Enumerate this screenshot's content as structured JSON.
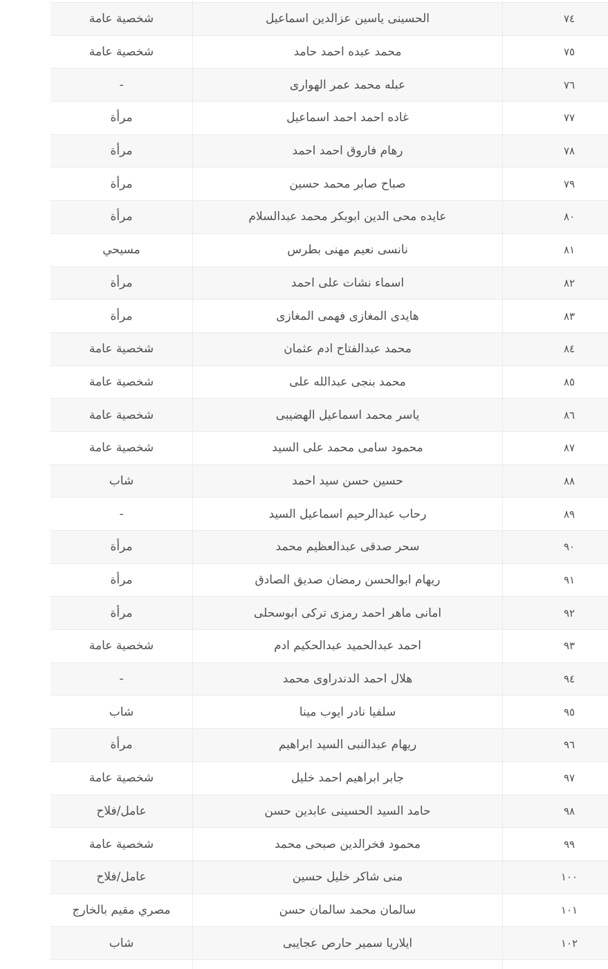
{
  "table": {
    "rows": [
      {
        "serial": "٧٤",
        "name": "الحسينى ياسين عزالدين اسماعيل",
        "category": "شخصية عامة"
      },
      {
        "serial": "٧٥",
        "name": "محمد عبده احمد حامد",
        "category": "شخصية عامة"
      },
      {
        "serial": "٧٦",
        "name": "عبله محمد عمر الهوارى",
        "category": "-"
      },
      {
        "serial": "٧٧",
        "name": "غاده احمد احمد اسماعيل",
        "category": "مرأة"
      },
      {
        "serial": "٧٨",
        "name": "رهام فاروق احمد احمد",
        "category": "مرأة"
      },
      {
        "serial": "٧٩",
        "name": "صباح صابر محمد حسين",
        "category": "مرأة"
      },
      {
        "serial": "٨٠",
        "name": "عايده محى الدين ابوبكر محمد عبدالسلام",
        "category": "مرأة"
      },
      {
        "serial": "٨١",
        "name": "نانسى نعيم مهنى بطرس",
        "category": "مسيحي"
      },
      {
        "serial": "٨٢",
        "name": "اسماء نشات على احمد",
        "category": "مرأة"
      },
      {
        "serial": "٨٣",
        "name": "هايدى المغازى فهمى المغازى",
        "category": "مرأة"
      },
      {
        "serial": "٨٤",
        "name": "محمد عبدالفتاح ادم عثمان",
        "category": "شخصية عامة"
      },
      {
        "serial": "٨٥",
        "name": "محمد بنجى عبدالله على",
        "category": "شخصية عامة"
      },
      {
        "serial": "٨٦",
        "name": "ياسر محمد اسماعيل الهضيبى",
        "category": "شخصية عامة"
      },
      {
        "serial": "٨٧",
        "name": "محمود سامى محمد على السيد",
        "category": "شخصية عامة"
      },
      {
        "serial": "٨٨",
        "name": "حسين حسن سيد احمد",
        "category": "شاب"
      },
      {
        "serial": "٨٩",
        "name": "رحاب عبدالرحيم اسماعيل السيد",
        "category": "-"
      },
      {
        "serial": "٩٠",
        "name": "سحر صدقى عبدالعظيم محمد",
        "category": "مرأة"
      },
      {
        "serial": "٩١",
        "name": "ريهام ابوالحسن رمضان صديق الصادق",
        "category": "مرأة"
      },
      {
        "serial": "٩٢",
        "name": "امانى ماهر احمد رمزى تركى ابوسحلى",
        "category": "مرأة"
      },
      {
        "serial": "٩٣",
        "name": "احمد عبدالحميد عبدالحكيم ادم",
        "category": "شخصية عامة"
      },
      {
        "serial": "٩٤",
        "name": "هلال احمد الدندراوى محمد",
        "category": "-"
      },
      {
        "serial": "٩٥",
        "name": "سلفيا نادر ايوب مينا",
        "category": "شاب"
      },
      {
        "serial": "٩٦",
        "name": "ريهام عبدالنبى السيد ابراهيم",
        "category": "مرأة"
      },
      {
        "serial": "٩٧",
        "name": "جابر ابراهيم احمد خليل",
        "category": "شخصية عامة"
      },
      {
        "serial": "٩٨",
        "name": "حامد السيد الحسينى عابدين حسن",
        "category": "عامل/فلاح"
      },
      {
        "serial": "٩٩",
        "name": "محمود فخرالدين صبحى محمد",
        "category": "شخصية عامة"
      },
      {
        "serial": "١٠٠",
        "name": "منى شاكر خليل حسين",
        "category": "عامل/فلاح"
      },
      {
        "serial": "١٠١",
        "name": "سالمان محمد سالمان حسن",
        "category": "مصري مقيم بالخارج"
      },
      {
        "serial": "١٠٢",
        "name": "ايلاريا سمير حارص عجايبى",
        "category": "شاب"
      }
    ]
  },
  "colors": {
    "row_bg": "#ffffff",
    "row_alt_bg": "#f7f7f7",
    "border": "#ebebeb",
    "text": "#4f4f4f"
  }
}
